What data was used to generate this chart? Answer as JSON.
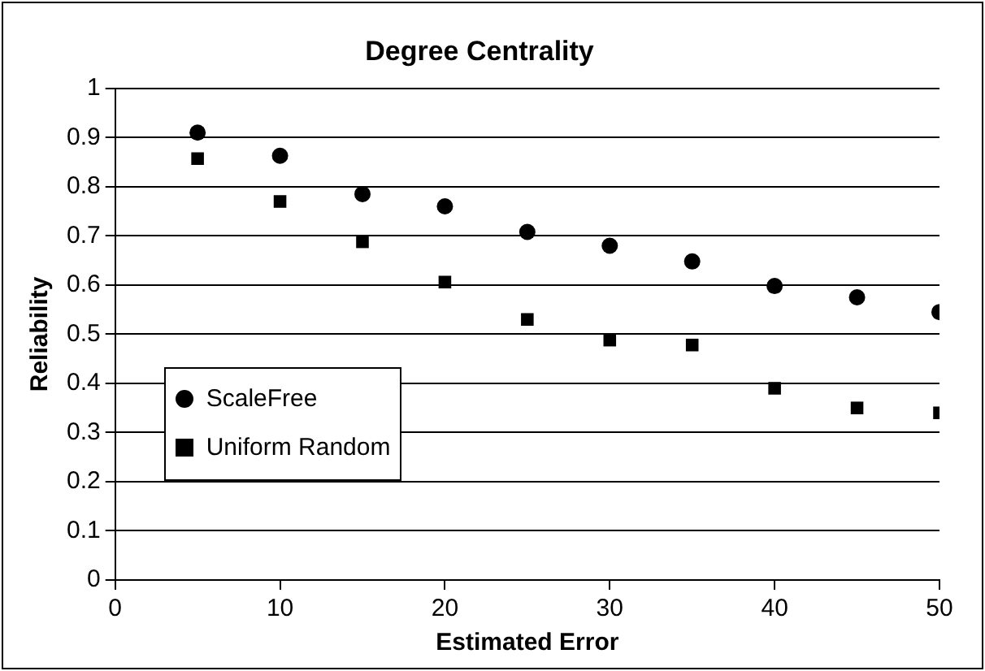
{
  "chart_data": {
    "type": "scatter",
    "title": "Degree Centrality",
    "xlabel": "Estimated Error",
    "ylabel": "Reliability",
    "x": [
      5,
      10,
      15,
      20,
      25,
      30,
      35,
      40,
      45,
      50
    ],
    "series": [
      {
        "name": "ScaleFree",
        "color": "#000000",
        "marker": "circle",
        "values": [
          0.91,
          0.863,
          0.785,
          0.76,
          0.708,
          0.68,
          0.648,
          0.598,
          0.575,
          0.545
        ]
      },
      {
        "name": "Uniform Random",
        "color": "#000000",
        "marker": "square",
        "values": [
          0.857,
          0.77,
          0.688,
          0.606,
          0.53,
          0.488,
          0.478,
          0.39,
          0.35,
          0.34
        ]
      }
    ],
    "xlim": [
      0,
      50
    ],
    "xticks": [
      0,
      10,
      20,
      30,
      40,
      50
    ],
    "ylim": [
      0,
      1
    ],
    "yticks": [
      0,
      0.1,
      0.2,
      0.3,
      0.4,
      0.5,
      0.6,
      0.7,
      0.8,
      0.9,
      1
    ],
    "grid": "y",
    "legend": "left"
  }
}
